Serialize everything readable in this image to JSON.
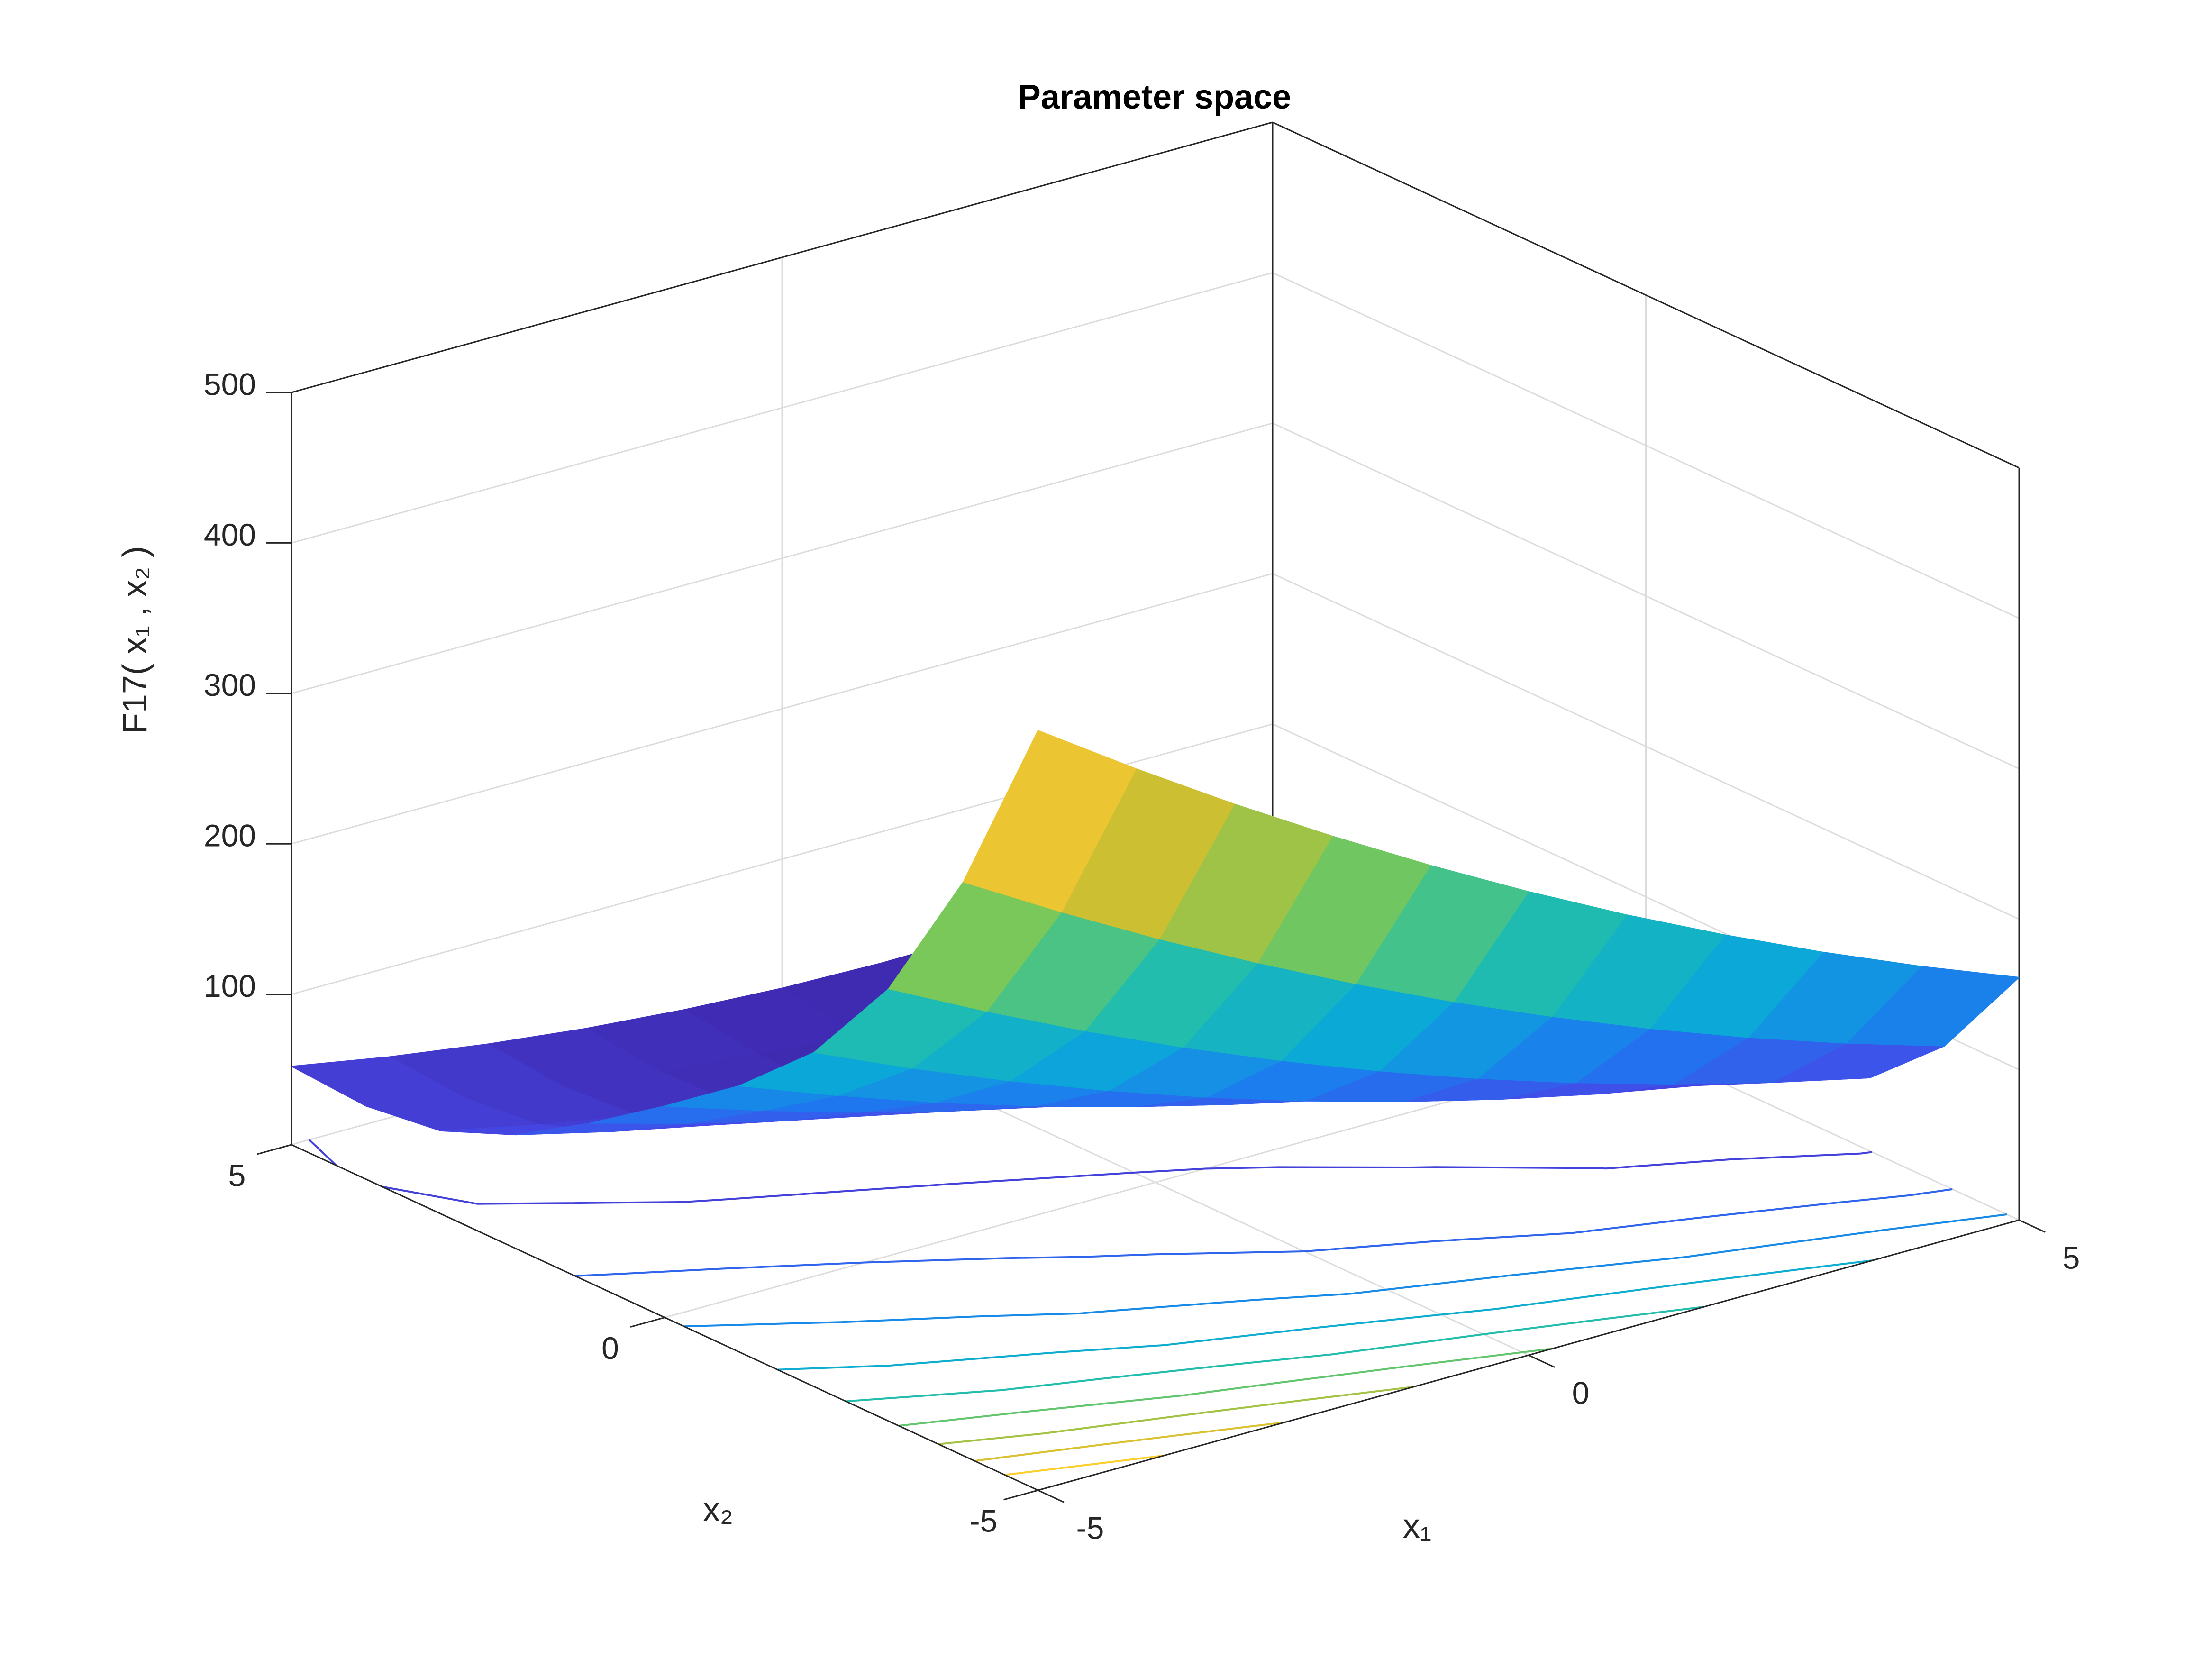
{
  "chart_data": {
    "type": "surface",
    "title": "Parameter space",
    "xlabel": "x₁",
    "ylabel": "x₂",
    "zlabel": "F17( x₁ , x₂ )",
    "x": [
      -5,
      -4,
      -3,
      -2,
      -1,
      0,
      1,
      2,
      3,
      4,
      5
    ],
    "y": [
      -5,
      -4,
      -3,
      -2,
      -1,
      0,
      1,
      2,
      3,
      4,
      5
    ],
    "z": [
      [
        505.0,
        461.6,
        420.2,
        380.9,
        343.5,
        308.1,
        274.7,
        243.4,
        214.0,
        186.6,
        161.3
      ],
      [
        381.4,
        343.5,
        307.6,
        273.8,
        241.9,
        212.0,
        184.2,
        158.3,
        134.4,
        112.6,
        92.7
      ],
      [
        287.4,
        254.5,
        223.6,
        194.7,
        167.9,
        143.0,
        120.1,
        99.2,
        80.4,
        63.5,
        48.6
      ],
      [
        222.1,
        193.7,
        167.3,
        142.9,
        120.5,
        100.1,
        81.7,
        65.3,
        50.9,
        38.5,
        28.1
      ],
      [
        177.0,
        152.6,
        130.1,
        109.7,
        91.2,
        74.8,
        60.4,
        47.9,
        37.5,
        29.0,
        22.6
      ],
      [
        140.6,
        119.6,
        100.6,
        83.6,
        68.6,
        55.6,
        44.6,
        35.6,
        28.6,
        23.6,
        20.6
      ],
      [
        106.2,
        88.1,
        72.0,
        57.9,
        45.9,
        35.8,
        27.7,
        21.6,
        17.6,
        15.5,
        15.4
      ],
      [
        75.5,
        59.8,
        46.1,
        34.5,
        24.8,
        17.1,
        11.5,
        7.8,
        6.1,
        6.4,
        8.8
      ],
      [
        55.1,
        41.3,
        29.5,
        19.7,
        12.0,
        6.2,
        2.4,
        0.6,
        0.9,
        3.1,
        7.3
      ],
      [
        48.6,
        36.2,
        25.8,
        17.4,
        11.0,
        6.6,
        4.2,
        3.8,
        5.4,
        9.0,
        14.6
      ],
      [
        52.1,
        40.5,
        31.0,
        23.4,
        17.9,
        14.3,
        12.8,
        13.3,
        15.7,
        20.2,
        26.6
      ]
    ],
    "xlim": [
      -5,
      5
    ],
    "ylim": [
      -5,
      5
    ],
    "zlim": [
      0,
      500
    ],
    "xticks": [
      -5,
      0,
      5
    ],
    "yticks": [
      -5,
      0,
      5
    ],
    "zticks": [
      100,
      200,
      300,
      400,
      500
    ],
    "grid": true,
    "colormap": "parula",
    "contour_levels": [
      50,
      100,
      150,
      200,
      250,
      300,
      350,
      400,
      450
    ]
  }
}
